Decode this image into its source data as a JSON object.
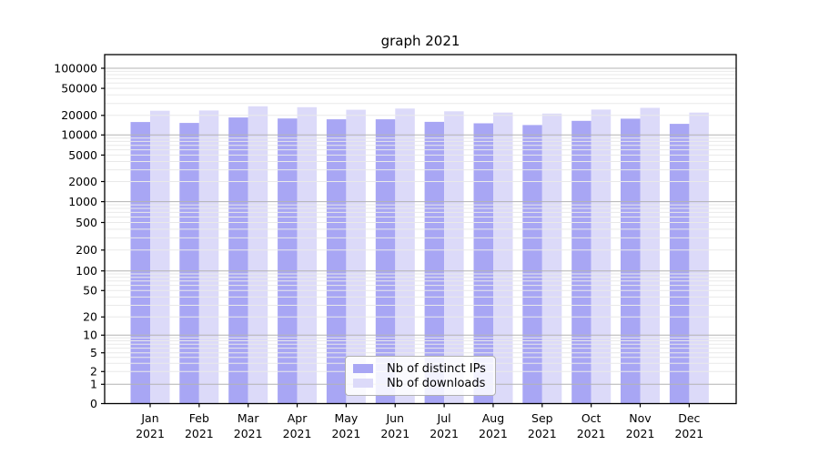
{
  "chart_data": {
    "type": "bar",
    "title": "graph 2021",
    "categories": [
      "Jan",
      "Feb",
      "Mar",
      "Apr",
      "May",
      "Jun",
      "Jul",
      "Aug",
      "Sep",
      "Oct",
      "Nov",
      "Dec"
    ],
    "year_label": "2021",
    "series": [
      {
        "name": "Nb of distinct IPs",
        "color": "#a8a6f4",
        "values": [
          15800,
          15300,
          18600,
          17900,
          17400,
          17400,
          15900,
          15100,
          14200,
          16500,
          17800,
          14800
        ]
      },
      {
        "name": "Nb of downloads",
        "color": "#dcdaf9",
        "values": [
          23400,
          23600,
          27200,
          26400,
          24200,
          25200,
          23000,
          22000,
          21300,
          24400,
          25800,
          22000
        ]
      }
    ],
    "yscale": "symlog",
    "yticks": [
      0,
      1,
      2,
      5,
      10,
      20,
      50,
      100,
      200,
      500,
      1000,
      2000,
      5000,
      10000,
      20000,
      50000,
      100000
    ],
    "ylim": [
      0,
      160000
    ],
    "grid": "both",
    "legend_position": "lower center"
  },
  "colors": {
    "major_grid": "#b3b3b3",
    "minor_grid": "#e9e9e9",
    "axis": "#000000",
    "tick_label": "#000000"
  }
}
